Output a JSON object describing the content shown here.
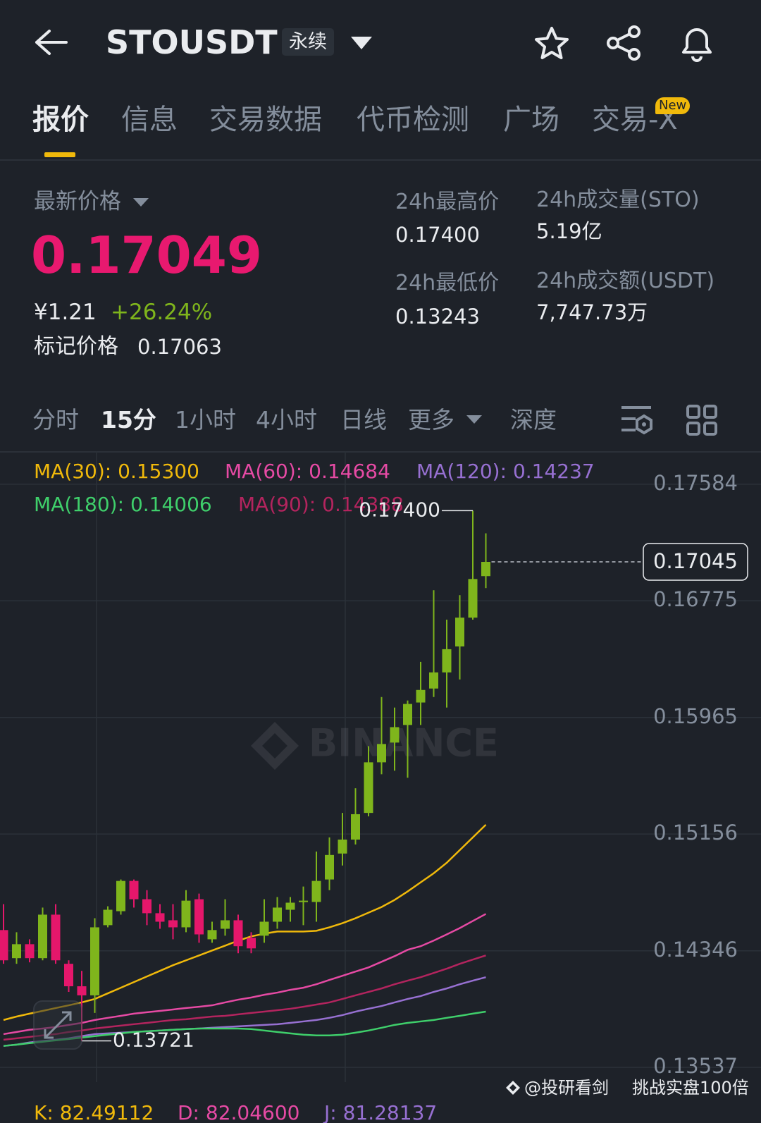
{
  "header": {
    "symbol": "STOUSDT",
    "badge": "永续"
  },
  "tabs": [
    "报价",
    "信息",
    "交易数据",
    "代币检测",
    "广场",
    "交易-X"
  ],
  "new_badge": "New",
  "price": {
    "label": "最新价格",
    "last": "0.17049",
    "cny": "¥1.21",
    "change": "+26.24%",
    "mark_label": "标记价格",
    "mark": "0.17063"
  },
  "stats": [
    {
      "label": "24h最高价",
      "value": "0.17400"
    },
    {
      "label": "24h成交量(STO)",
      "value": "5.19亿"
    },
    {
      "label": "24h最低价",
      "value": "0.13243"
    },
    {
      "label": "24h成交额(USDT)",
      "value": "7,747.73万"
    }
  ],
  "intervals": [
    "分时",
    "15分",
    "1小时",
    "4小时",
    "日线",
    "更多",
    "深度"
  ],
  "chart_data": {
    "type": "candlestick",
    "up_color": "#7fb51c",
    "down_color": "#e5176b",
    "open": [
      0.1449,
      0.14295,
      0.14392,
      0.14295,
      0.14597,
      0.14256,
      0.141,
      0.14037,
      0.14524,
      0.14621,
      0.14831,
      0.14704,
      0.14607,
      0.14558,
      0.14509,
      0.14704,
      0.14426,
      0.14499,
      0.14558,
      0.14436,
      0.14451,
      0.14548,
      0.14631,
      0.14685,
      0.14685,
      0.14841,
      0.15021,
      0.15118,
      0.15303,
      0.15654,
      0.15791,
      0.15913,
      0.16069,
      0.16166,
      0.16278,
      0.16458,
      0.16658,
      0.16946
    ],
    "high": [
      0.1467,
      0.14475,
      0.14426,
      0.14646,
      0.1467,
      0.1428,
      0.14207,
      0.14572,
      0.14655,
      0.14841,
      0.14841,
      0.14767,
      0.1467,
      0.1467,
      0.14767,
      0.14743,
      0.14548,
      0.14704,
      0.14597,
      0.14475,
      0.14704,
      0.14719,
      0.14719,
      0.14792,
      0.15035,
      0.15133,
      0.15303,
      0.15474,
      0.15766,
      0.16107,
      0.16034,
      0.16083,
      0.16351,
      0.16848,
      0.16644,
      0.16814,
      0.174,
      0.17243
    ],
    "low": [
      0.14256,
      0.14256,
      0.14266,
      0.1428,
      0.14256,
      0.14061,
      0.13721,
      0.13915,
      0.14509,
      0.14597,
      0.14646,
      0.14524,
      0.14499,
      0.14426,
      0.14475,
      0.14402,
      0.14402,
      0.14451,
      0.14329,
      0.14329,
      0.14402,
      0.14499,
      0.14548,
      0.14524,
      0.14548,
      0.14767,
      0.14938,
      0.15084,
      0.15279,
      0.15571,
      0.15596,
      0.15547,
      0.15913,
      0.16107,
      0.16034,
      0.16229,
      0.16644,
      0.16863
    ],
    "close": [
      0.1428,
      0.14392,
      0.14295,
      0.14597,
      0.1428,
      0.141,
      0.14037,
      0.14509,
      0.14631,
      0.14831,
      0.14704,
      0.14607,
      0.14548,
      0.14509,
      0.14694,
      0.1446,
      0.1449,
      0.14558,
      0.14378,
      0.14363,
      0.14548,
      0.14646,
      0.1468,
      0.14694,
      0.14831,
      0.15011,
      0.15118,
      0.15294,
      0.15654,
      0.15781,
      0.15898,
      0.16059,
      0.16156,
      0.16278,
      0.16439,
      0.16658,
      0.16926,
      0.17045
    ],
    "lines": [
      {
        "name": "MA(30): 0.15300",
        "color": "#f0b90b",
        "values": [
          0.13866,
          0.1389,
          0.1391,
          0.13929,
          0.13949,
          0.13968,
          0.13988,
          0.14012,
          0.14051,
          0.1409,
          0.14129,
          0.14168,
          0.14207,
          0.14246,
          0.1428,
          0.14314,
          0.14348,
          0.14382,
          0.14417,
          0.14446,
          0.14465,
          0.1448,
          0.1448,
          0.1448,
          0.14485,
          0.14509,
          0.14538,
          0.14572,
          0.14611,
          0.1465,
          0.14699,
          0.14758,
          0.14821,
          0.14884,
          0.14957,
          0.15045,
          0.15133,
          0.15221
        ]
      },
      {
        "name": "MA(60): 0.14684",
        "color": "#e64aa4",
        "values": [
          0.13768,
          0.13783,
          0.13798,
          0.13807,
          0.13817,
          0.13832,
          0.13846,
          0.13866,
          0.13881,
          0.13895,
          0.1391,
          0.1392,
          0.13929,
          0.13939,
          0.13949,
          0.13958,
          0.13968,
          0.13988,
          0.14007,
          0.14022,
          0.14041,
          0.14056,
          0.14075,
          0.1409,
          0.14114,
          0.14144,
          0.14173,
          0.14202,
          0.14231,
          0.1427,
          0.14309,
          0.14353,
          0.14378,
          0.14417,
          0.1446,
          0.14504,
          0.14553,
          0.14602
        ]
      },
      {
        "name": "MA(120): 0.14237",
        "color": "#9770d2",
        "values": [
          0.13686,
          0.13695,
          0.1371,
          0.1372,
          0.13729,
          0.13739,
          0.13754,
          0.13768,
          0.13773,
          0.13778,
          0.13783,
          0.13788,
          0.13793,
          0.13798,
          0.13803,
          0.13807,
          0.13812,
          0.13817,
          0.13822,
          0.13827,
          0.13832,
          0.13837,
          0.13846,
          0.13856,
          0.13866,
          0.13881,
          0.139,
          0.13924,
          0.13944,
          0.13963,
          0.13988,
          0.14012,
          0.14032,
          0.14061,
          0.14085,
          0.14114,
          0.14139,
          0.14163
        ]
      },
      {
        "name": "MA(180): 0.14006",
        "color": "#3fcf6b",
        "values": [
          0.13686,
          0.13695,
          0.13705,
          0.13715,
          0.13725,
          0.13734,
          0.13744,
          0.13754,
          0.13764,
          0.13773,
          0.13783,
          0.13788,
          0.13793,
          0.13798,
          0.13803,
          0.13807,
          0.13807,
          0.13807,
          0.13807,
          0.13803,
          0.13793,
          0.13783,
          0.13773,
          0.13764,
          0.13759,
          0.13759,
          0.13764,
          0.13778,
          0.13793,
          0.13812,
          0.13832,
          0.13846,
          0.13856,
          0.13866,
          0.13881,
          0.13895,
          0.1391,
          0.13924
        ]
      },
      {
        "name": "MA(90): 0.14388",
        "color": "#b3245e",
        "values": [
          0.13729,
          0.13739,
          0.13749,
          0.13759,
          0.13768,
          0.13783,
          0.13793,
          0.13807,
          0.13817,
          0.13827,
          0.13837,
          0.13846,
          0.13856,
          0.13866,
          0.13871,
          0.13881,
          0.1389,
          0.13895,
          0.13905,
          0.13915,
          0.13924,
          0.13934,
          0.13944,
          0.13958,
          0.13973,
          0.13988,
          0.14012,
          0.14037,
          0.14061,
          0.14085,
          0.14114,
          0.14139,
          0.14163,
          0.14192,
          0.14222,
          0.14256,
          0.14285,
          0.14314
        ]
      }
    ],
    "ylim": [
      0.13435,
      0.17813
    ],
    "yticks": [
      {
        "value": 0.17584,
        "label": "0.17584"
      },
      {
        "value": 0.16775,
        "label": "0.16775"
      },
      {
        "value": 0.15965,
        "label": "0.15965"
      },
      {
        "value": 0.15156,
        "label": "0.15156"
      },
      {
        "value": 0.14346,
        "label": "0.14346"
      },
      {
        "value": 0.13537,
        "label": "0.13537"
      }
    ],
    "grid": true,
    "last_price": {
      "value": 0.17045,
      "label": "0.17045"
    },
    "high_marker_label": "0.17400",
    "low_marker_label": "0.13721",
    "watermark": "BINANCE"
  },
  "kdj": [
    {
      "text": "K: 82.49112",
      "color": "#f0b90b"
    },
    {
      "text": "D: 82.04600",
      "color": "#e64aa4"
    },
    {
      "text": "J: 81.28137",
      "color": "#9770d2"
    }
  ],
  "footer": {
    "author": "@投研看剑",
    "slogan": "挑战实盘100倍"
  }
}
